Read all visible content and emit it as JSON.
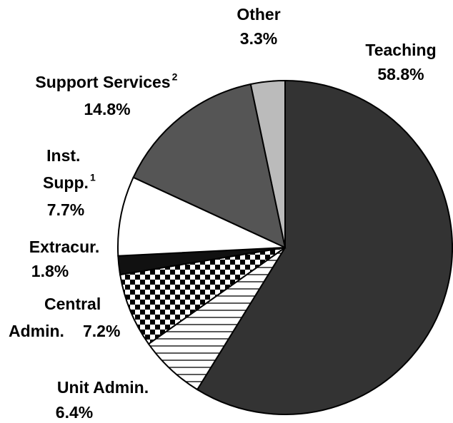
{
  "chart_data": {
    "type": "pie",
    "categories": [
      "Teaching",
      "Unit Admin.",
      "Central Admin.",
      "Extracur.",
      "Inst. Supp.",
      "Support Services",
      "Other"
    ],
    "label_notes": [
      null,
      null,
      null,
      null,
      "1",
      "2",
      null
    ],
    "values": [
      58.8,
      6.4,
      7.2,
      1.8,
      7.7,
      14.8,
      3.3
    ],
    "value_labels": [
      "58.8%",
      "6.4%",
      "7.2%",
      "1.8%",
      "7.7%",
      "14.8%",
      "3.3%"
    ],
    "colors": [
      "#333333",
      "url(#hlines)",
      "url(#checker)",
      "#111111",
      "#ffffff",
      "#555555",
      "#bbbbbb"
    ]
  }
}
